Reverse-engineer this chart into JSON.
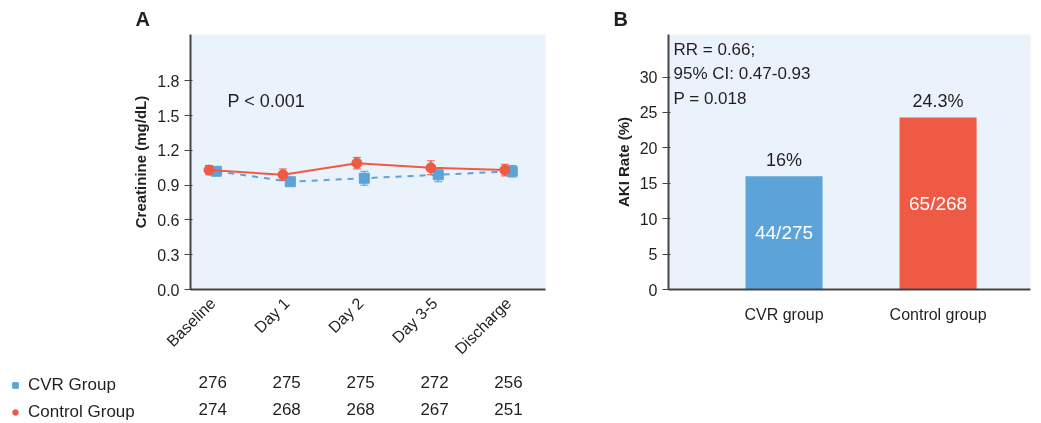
{
  "chart_data": [
    {
      "type": "line",
      "title": "A",
      "ylabel": "Creatinine (mg/dL)",
      "categories": [
        "Baseline",
        "Day 1",
        "Day 2",
        "Day 3-5",
        "Discharge"
      ],
      "series": [
        {
          "name": "CVR Group",
          "color": "#5ba3d9",
          "values": [
            1.02,
            0.93,
            0.96,
            0.99,
            1.02
          ],
          "errors": [
            0.03,
            0.03,
            0.06,
            0.06,
            0.05
          ],
          "marker": "square",
          "line_style": "dashed"
        },
        {
          "name": "Control Group",
          "color": "#ef5a45",
          "values": [
            1.03,
            0.99,
            1.09,
            1.05,
            1.03
          ],
          "errors": [
            0.04,
            0.05,
            0.05,
            0.06,
            0.05
          ],
          "marker": "circle",
          "line_style": "solid"
        }
      ],
      "ylim": [
        0,
        2.2
      ],
      "yticks": [
        {
          "value": 0,
          "label": "0.0"
        },
        0.3,
        0.6,
        0.9,
        1.2,
        1.5,
        1.8
      ],
      "grid": false,
      "legend": "bottom left",
      "annotations": [
        "P < 0.001",
        "276",
        "275",
        "275",
        "272",
        "256",
        "274",
        "268",
        "268",
        "267",
        "251"
      ]
    },
    {
      "type": "bar",
      "title": "B",
      "ylabel": "AKI Rate (%)",
      "categories": [
        "CVR group",
        "Control group"
      ],
      "values": [
        16,
        24.3
      ],
      "colors": [
        "#5ba3d9",
        "#ef5a45"
      ],
      "value_labels": [
        "16%",
        "24.3%"
      ],
      "ylim": [
        0,
        36
      ],
      "yticks": [
        0,
        5,
        10,
        15,
        20,
        25,
        30
      ],
      "grid": false,
      "legend": false,
      "annotations": [
        "RR = 0.66;\n95% CI: 0.47-0.93\nP = 0.018",
        "44/275",
        "65/268"
      ]
    }
  ]
}
